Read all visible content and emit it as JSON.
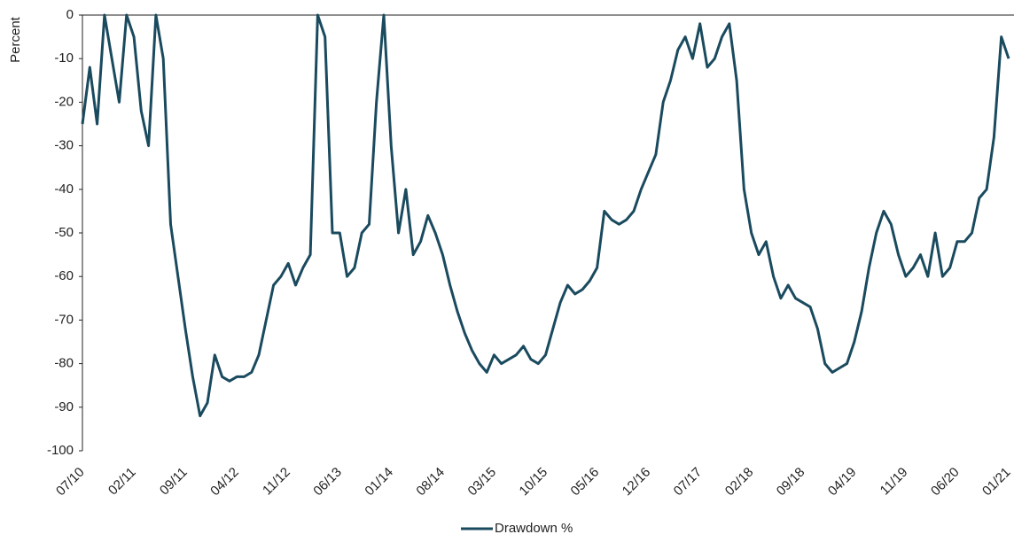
{
  "chart_data": {
    "type": "line",
    "y_label": "Percent",
    "categories": [
      "07/10",
      null,
      null,
      null,
      null,
      null,
      null,
      "02/11",
      null,
      null,
      null,
      null,
      null,
      null,
      "09/11",
      null,
      null,
      null,
      null,
      null,
      null,
      "04/12",
      null,
      null,
      null,
      null,
      null,
      null,
      "11/12",
      null,
      null,
      null,
      null,
      null,
      null,
      "06/13",
      null,
      null,
      null,
      null,
      null,
      null,
      "01/14",
      null,
      null,
      null,
      null,
      null,
      null,
      "08/14",
      null,
      null,
      null,
      null,
      null,
      null,
      "03/15",
      null,
      null,
      null,
      null,
      null,
      null,
      "10/15",
      null,
      null,
      null,
      null,
      null,
      null,
      "05/16",
      null,
      null,
      null,
      null,
      null,
      null,
      "12/16",
      null,
      null,
      null,
      null,
      null,
      null,
      "07/17",
      null,
      null,
      null,
      null,
      null,
      null,
      "02/18",
      null,
      null,
      null,
      null,
      null,
      null,
      "09/18",
      null,
      null,
      null,
      null,
      null,
      null,
      "04/19",
      null,
      null,
      null,
      null,
      null,
      null,
      "11/19",
      null,
      null,
      null,
      null,
      null,
      null,
      "06/20",
      null,
      null,
      null,
      null,
      null,
      null,
      "01/21"
    ],
    "series": [
      {
        "name": "Drawdown %",
        "color": "#1a4a5e",
        "values": [
          -25,
          -12,
          -25,
          0,
          -10,
          -20,
          0,
          -5,
          -22,
          -30,
          0,
          -10,
          -48,
          -60,
          -72,
          -83,
          -92,
          -89,
          -78,
          -83,
          -84,
          -83,
          -83,
          -82,
          -78,
          -70,
          -62,
          -60,
          -57,
          -62,
          -58,
          -55,
          0,
          -5,
          -50,
          -50,
          -60,
          -58,
          -50,
          -48,
          -20,
          0,
          -30,
          -50,
          -40,
          -55,
          -52,
          -46,
          -50,
          -55,
          -62,
          -68,
          -73,
          -77,
          -80,
          -82,
          -78,
          -80,
          -79,
          -78,
          -76,
          -79,
          -80,
          -78,
          -72,
          -66,
          -62,
          -64,
          -63,
          -61,
          -58,
          -45,
          -47,
          -48,
          -47,
          -45,
          -40,
          -36,
          -32,
          -20,
          -15,
          -8,
          -5,
          -10,
          -2,
          -12,
          -10,
          -5,
          -2,
          -15,
          -40,
          -50,
          -55,
          -52,
          -60,
          -65,
          -62,
          -65,
          -66,
          -67,
          -72,
          -80,
          -82,
          -81,
          -80,
          -75,
          -68,
          -58,
          -50,
          -45,
          -48,
          -55,
          -60,
          -58,
          -55,
          -60,
          -50,
          -60,
          -58,
          -52,
          -52,
          -50,
          -42,
          -40,
          -28,
          -5,
          -10
        ]
      }
    ],
    "ylim": [
      -100,
      0
    ],
    "yticks": [
      0,
      -10,
      -20,
      -30,
      -40,
      -50,
      -60,
      -70,
      -80,
      -90,
      -100
    ],
    "grid": false,
    "legend": "bottom"
  }
}
